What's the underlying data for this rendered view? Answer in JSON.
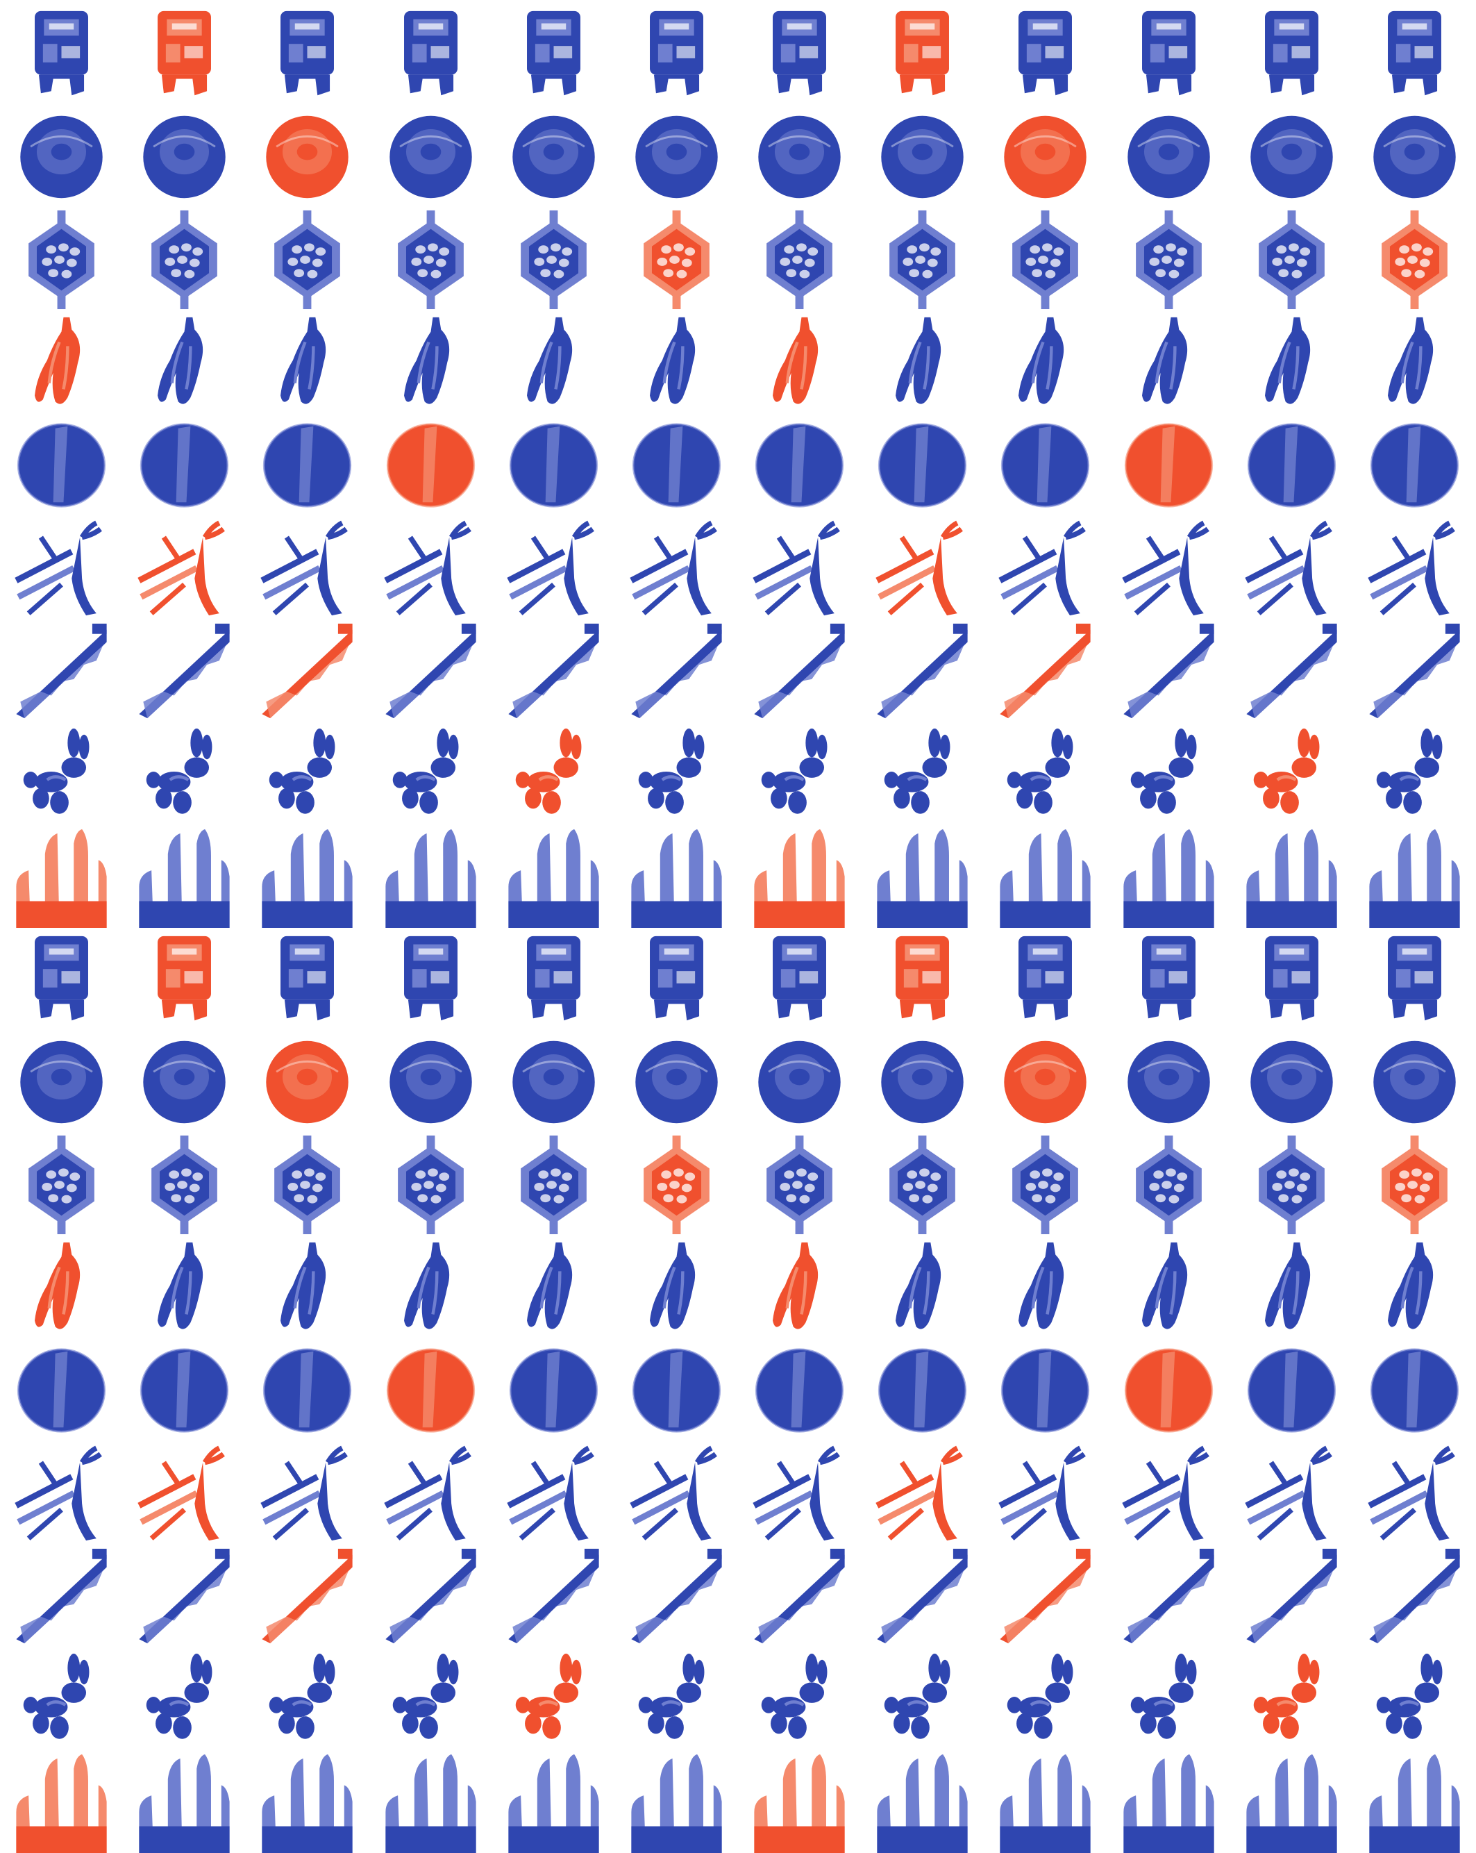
{
  "colors": {
    "background": "#ffffff",
    "blue": "#2f46b0",
    "blue_light": "#6f7fd0",
    "red": "#f0502e",
    "red_light": "#f58a6c"
  },
  "grid": {
    "columns": 12,
    "rows": 18
  },
  "motifs": [
    {
      "name": "sign-box-icon",
      "red_columns": [
        1,
        7
      ]
    },
    {
      "name": "dish-disc-icon",
      "red_columns": [
        2,
        8
      ]
    },
    {
      "name": "hex-mesh-icon",
      "red_columns": [
        5,
        11
      ]
    },
    {
      "name": "banana-bunch-icon",
      "red_columns": [
        0,
        6
      ]
    },
    {
      "name": "round-plate-icon",
      "red_columns": [
        3,
        9
      ]
    },
    {
      "name": "branch-scissors-icon",
      "red_columns": [
        1,
        7
      ]
    },
    {
      "name": "stair-ramp-icon",
      "red_columns": [
        2,
        8
      ]
    },
    {
      "name": "balloon-dog-icon",
      "red_columns": [
        4,
        10
      ]
    },
    {
      "name": "fence-posts-icon",
      "red_columns": [
        0,
        6
      ]
    }
  ]
}
